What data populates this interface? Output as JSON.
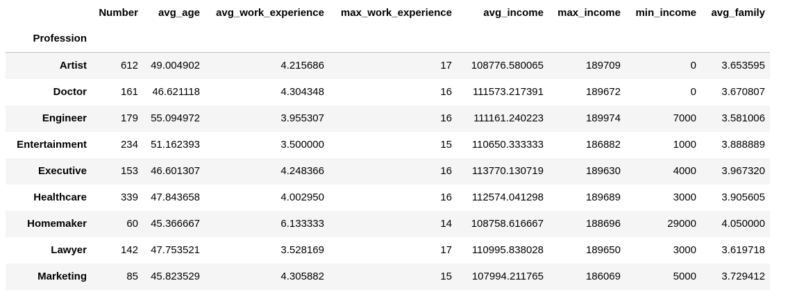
{
  "table": {
    "index_name": "Profession",
    "columns": [
      "Number",
      "avg_age",
      "avg_work_experience",
      "max_work_experience",
      "avg_income",
      "max_income",
      "min_income",
      "avg_family"
    ],
    "rows": [
      {
        "label": "Artist",
        "cells": [
          "612",
          "49.004902",
          "4.215686",
          "17",
          "108776.580065",
          "189709",
          "0",
          "3.653595"
        ]
      },
      {
        "label": "Doctor",
        "cells": [
          "161",
          "46.621118",
          "4.304348",
          "16",
          "111573.217391",
          "189672",
          "0",
          "3.670807"
        ]
      },
      {
        "label": "Engineer",
        "cells": [
          "179",
          "55.094972",
          "3.955307",
          "16",
          "111161.240223",
          "189974",
          "7000",
          "3.581006"
        ]
      },
      {
        "label": "Entertainment",
        "cells": [
          "234",
          "51.162393",
          "3.500000",
          "15",
          "110650.333333",
          "186882",
          "1000",
          "3.888889"
        ]
      },
      {
        "label": "Executive",
        "cells": [
          "153",
          "46.601307",
          "4.248366",
          "16",
          "113770.130719",
          "189630",
          "4000",
          "3.967320"
        ]
      },
      {
        "label": "Healthcare",
        "cells": [
          "339",
          "47.843658",
          "4.002950",
          "16",
          "112574.041298",
          "189689",
          "3000",
          "3.905605"
        ]
      },
      {
        "label": "Homemaker",
        "cells": [
          "60",
          "45.366667",
          "6.133333",
          "14",
          "108758.616667",
          "188696",
          "29000",
          "4.050000"
        ]
      },
      {
        "label": "Lawyer",
        "cells": [
          "142",
          "47.753521",
          "3.528169",
          "17",
          "110995.838028",
          "189650",
          "3000",
          "3.619718"
        ]
      },
      {
        "label": "Marketing",
        "cells": [
          "85",
          "45.823529",
          "4.305882",
          "15",
          "107994.211765",
          "186069",
          "5000",
          "3.729412"
        ]
      }
    ]
  }
}
